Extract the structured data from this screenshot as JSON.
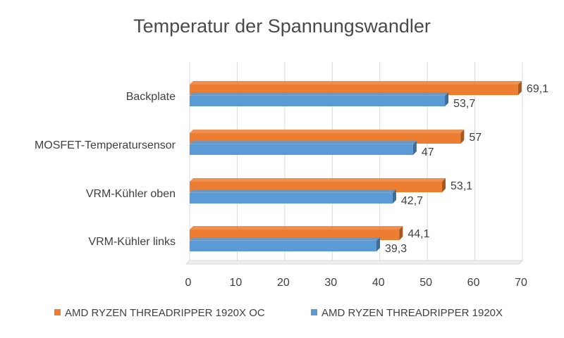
{
  "chart_data": {
    "type": "bar",
    "orientation": "horizontal",
    "title": "Temperatur der Spannungswandler",
    "xlabel": "",
    "ylabel": "",
    "xlim": [
      0,
      70
    ],
    "ticks": [
      0,
      10,
      20,
      30,
      40,
      50,
      60,
      70
    ],
    "grid": true,
    "legend": "bottom",
    "categories": [
      "Backplate",
      "MOSFET-Temperatursensor",
      "VRM-Kühler oben",
      "VRM-Kühler links"
    ],
    "series": [
      {
        "name": "AMD RYZEN THREADRIPPER 1920X OC",
        "color": "#ed7d31",
        "values": [
          69.1,
          57,
          53.1,
          44.1
        ],
        "labels": [
          "69,1",
          "57",
          "53,1",
          "44,1"
        ]
      },
      {
        "name": "AMD RYZEN THREADRIPPER 1920X",
        "color": "#5b9bd5",
        "values": [
          53.7,
          47,
          42.7,
          39.3
        ],
        "labels": [
          "53,7",
          "47",
          "42,7",
          "39,3"
        ]
      }
    ]
  }
}
